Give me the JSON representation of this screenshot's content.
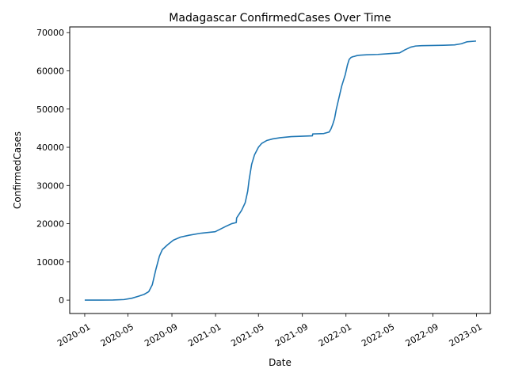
{
  "chart_data": {
    "type": "line",
    "title": "Madagascar  ConfirmedCases Over Time",
    "xlabel": "Date",
    "ylabel": "ConfirmedCases",
    "xlim": [
      "2019-11-20",
      "2023-02-09"
    ],
    "ylim": [
      -3500,
      71500
    ],
    "grid": false,
    "x_ticks": [
      {
        "date": "2020-01-01",
        "label": "2020-01"
      },
      {
        "date": "2020-05-01",
        "label": "2020-05"
      },
      {
        "date": "2020-09-01",
        "label": "2020-09"
      },
      {
        "date": "2021-01-01",
        "label": "2021-01"
      },
      {
        "date": "2021-05-01",
        "label": "2021-05"
      },
      {
        "date": "2021-09-01",
        "label": "2021-09"
      },
      {
        "date": "2022-01-01",
        "label": "2022-01"
      },
      {
        "date": "2022-05-01",
        "label": "2022-05"
      },
      {
        "date": "2022-09-01",
        "label": "2022-09"
      },
      {
        "date": "2023-01-01",
        "label": "2023-01"
      }
    ],
    "y_ticks": [
      {
        "value": 0,
        "label": "0"
      },
      {
        "value": 10000,
        "label": "10000"
      },
      {
        "value": 20000,
        "label": "20000"
      },
      {
        "value": 30000,
        "label": "30000"
      },
      {
        "value": 40000,
        "label": "40000"
      },
      {
        "value": 50000,
        "label": "50000"
      },
      {
        "value": 60000,
        "label": "60000"
      },
      {
        "value": 70000,
        "label": "70000"
      }
    ],
    "series": [
      {
        "color": "#1f77b4",
        "x": [
          "2020-01-01",
          "2020-03-20",
          "2020-04-20",
          "2020-05-12",
          "2020-05-30",
          "2020-06-15",
          "2020-06-28",
          "2020-07-08",
          "2020-07-18",
          "2020-07-28",
          "2020-08-05",
          "2020-08-20",
          "2020-09-05",
          "2020-09-25",
          "2020-10-20",
          "2020-11-20",
          "2020-12-31",
          "2021-01-15",
          "2021-02-01",
          "2021-02-15",
          "2021-02-28",
          "2021-03-01",
          "2021-03-15",
          "2021-03-25",
          "2021-04-01",
          "2021-04-05",
          "2021-04-12",
          "2021-04-20",
          "2021-05-01",
          "2021-05-10",
          "2021-05-25",
          "2021-06-10",
          "2021-07-01",
          "2021-08-01",
          "2021-08-31",
          "2021-09-29",
          "2021-09-30",
          "2021-10-31",
          "2021-11-15",
          "2021-11-20",
          "2021-11-25",
          "2021-11-30",
          "2021-12-05",
          "2021-12-10",
          "2021-12-15",
          "2021-12-20",
          "2021-12-25",
          "2021-12-30",
          "2022-01-05",
          "2022-01-10",
          "2022-01-15",
          "2022-01-20",
          "2022-01-25",
          "2022-02-01",
          "2022-02-10",
          "2022-02-28",
          "2022-03-31",
          "2022-04-30",
          "2022-05-31",
          "2022-06-15",
          "2022-07-01",
          "2022-07-15",
          "2022-08-01",
          "2022-09-01",
          "2022-10-01",
          "2022-11-01",
          "2022-11-20",
          "2022-12-05",
          "2022-12-31"
        ],
        "y": [
          0,
          30,
          150,
          500,
          1000,
          1500,
          2200,
          4000,
          8000,
          11500,
          13200,
          14500,
          15700,
          16500,
          17000,
          17500,
          17900,
          18600,
          19400,
          20000,
          20300,
          21500,
          23500,
          25500,
          28500,
          31500,
          35500,
          38000,
          40000,
          41000,
          41800,
          42200,
          42500,
          42800,
          42900,
          43000,
          43500,
          43600,
          44000,
          44800,
          46000,
          47500,
          50000,
          52000,
          54000,
          56000,
          57500,
          59000,
          61500,
          63000,
          63500,
          63700,
          63800,
          64000,
          64100,
          64200,
          64300,
          64500,
          64700,
          65500,
          66200,
          66500,
          66600,
          66650,
          66700,
          66800,
          67100,
          67600,
          67800
        ]
      }
    ]
  }
}
